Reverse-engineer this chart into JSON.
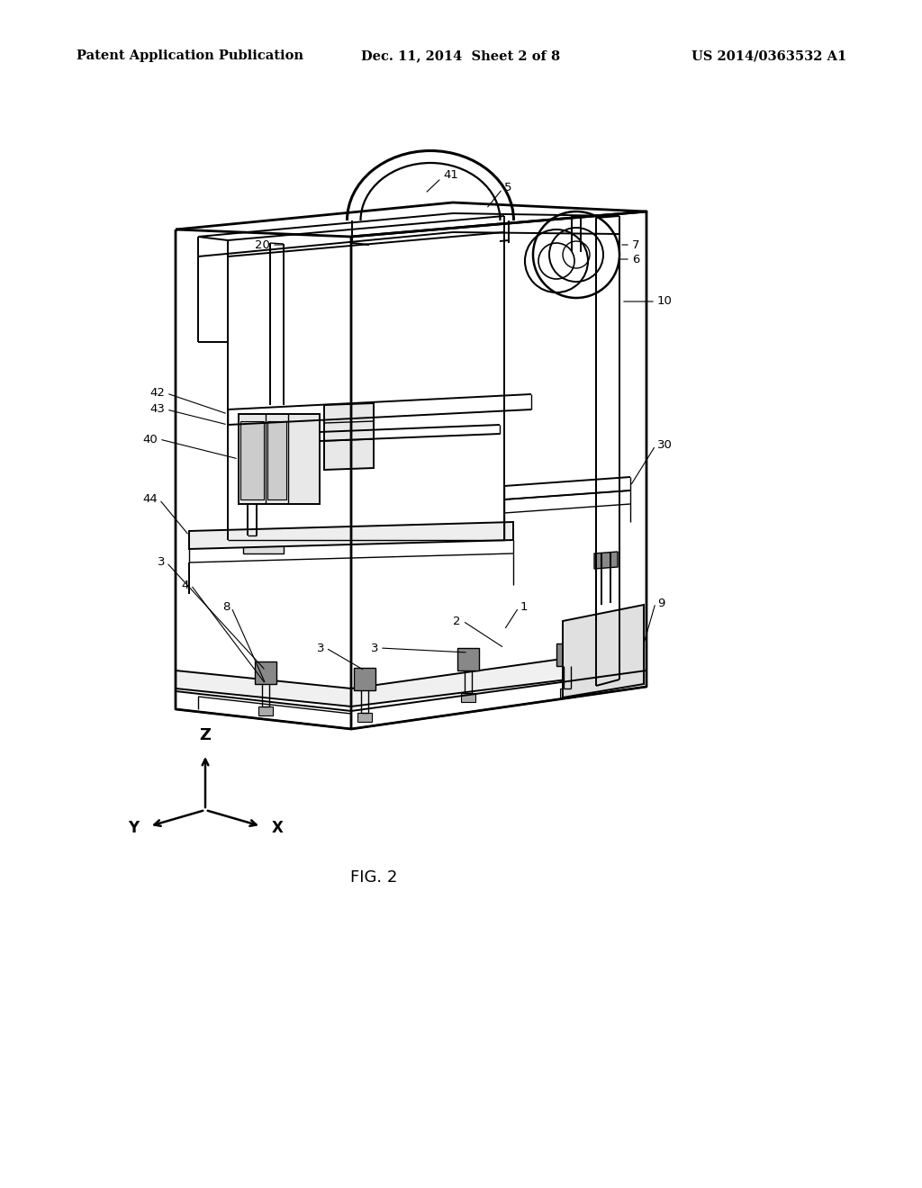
{
  "bg_color": "#ffffff",
  "header_left": "Patent Application Publication",
  "header_mid": "Dec. 11, 2014  Sheet 2 of 8",
  "header_right": "US 2014/0363532 A1",
  "fig_label": "FIG. 2",
  "header_fontsize": 10.5,
  "fig_label_fontsize": 13,
  "label_fontsize": 9.5,
  "leader_lw": 0.8,
  "line_lw": 1.5
}
